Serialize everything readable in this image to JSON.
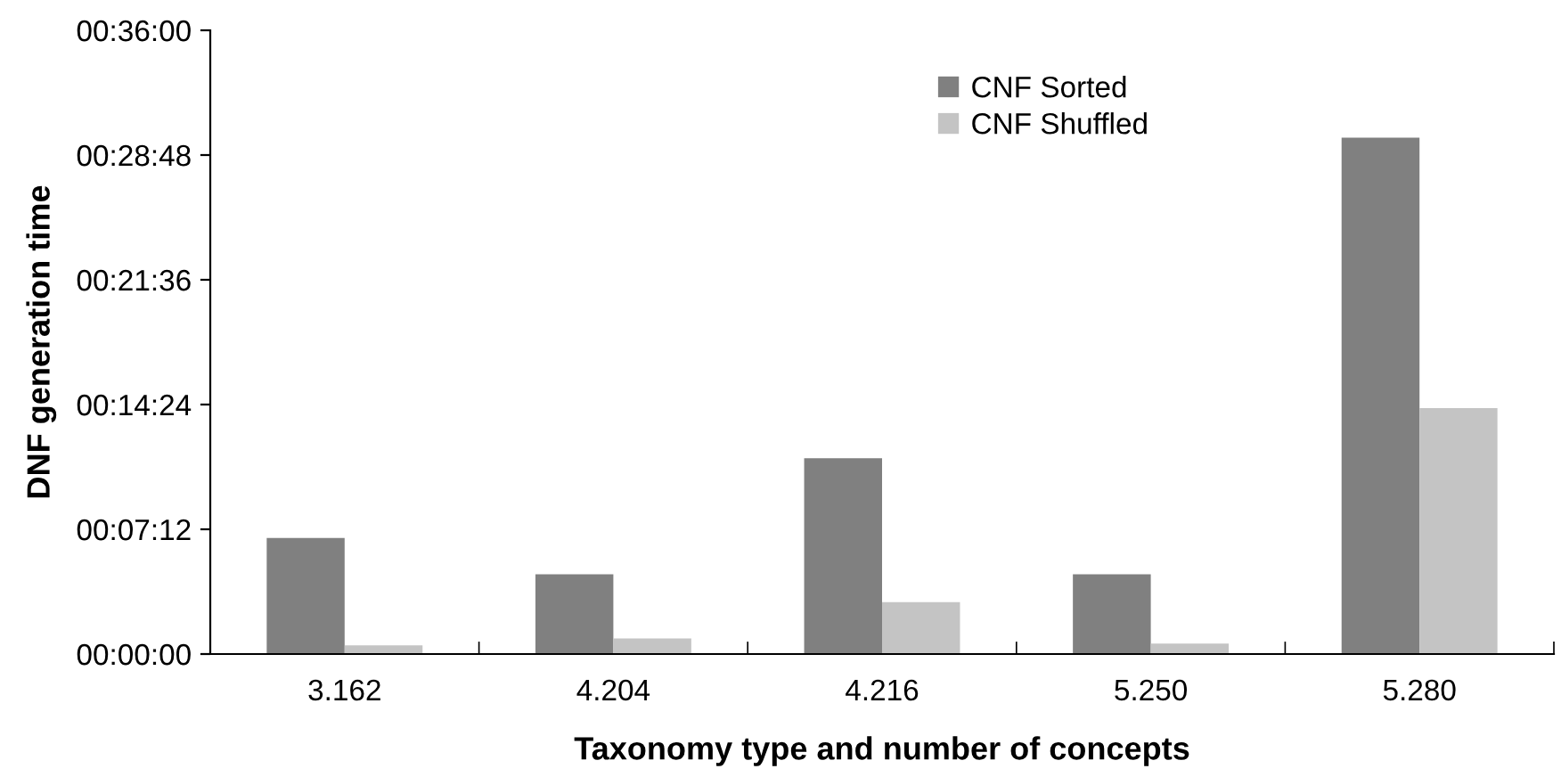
{
  "chart_data": {
    "type": "bar",
    "categories": [
      "3.162",
      "4.204",
      "4.216",
      "5.250",
      "5.280"
    ],
    "series": [
      {
        "name": "CNF Sorted",
        "color": "#808080",
        "values": [
          6.7,
          4.6,
          11.3,
          4.6,
          29.8
        ]
      },
      {
        "name": "CNF Shuffled",
        "color": "#c4c4c4",
        "values": [
          0.5,
          0.9,
          3.0,
          0.6,
          14.2
        ]
      }
    ],
    "xlabel": "Taxonomy type and number of concepts",
    "ylabel": "DNF generation time",
    "ylim": [
      0,
      36
    ],
    "yticks": [
      {
        "value": 0,
        "label": "00:00:00"
      },
      {
        "value": 7.2,
        "label": "00:07:12"
      },
      {
        "value": 14.4,
        "label": "00:14:24"
      },
      {
        "value": 21.6,
        "label": "00:21:36"
      },
      {
        "value": 28.8,
        "label": "00:28:48"
      },
      {
        "value": 36,
        "label": "00:36:00"
      }
    ],
    "grid": false,
    "legend": "top"
  }
}
